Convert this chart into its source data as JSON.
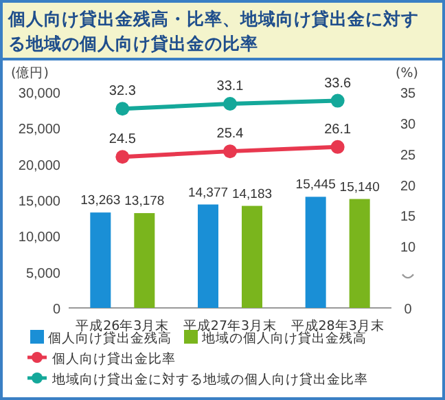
{
  "chart_data": {
    "type": "bar",
    "title": "個人向け貸出金残高・比率、地域向け貸出金に対する地域の個人向け貸出金の比率",
    "ylabel": "(億円)",
    "y2label": "(%)",
    "categories": [
      "平成26年3月末",
      "平成27年3月末",
      "平成28年3月末"
    ],
    "series": [
      {
        "name": "個人向け貸出金残高",
        "color": "#1a8fd6",
        "values": [
          13263,
          14377,
          15445
        ],
        "value_labels": [
          "13,263",
          "14,377",
          "15,445"
        ]
      },
      {
        "name": "地域の個人向け貸出金残高",
        "color": "#7ab51d",
        "values": [
          13178,
          14183,
          15140
        ],
        "value_labels": [
          "13,178",
          "14,183",
          "15,140"
        ]
      },
      {
        "name": "個人向け貸出金比率",
        "type": "line",
        "axis": "y2",
        "color": "#e8384f",
        "values": [
          24.5,
          25.4,
          26.1
        ],
        "value_labels": [
          "24.5",
          "25.4",
          "26.1"
        ]
      },
      {
        "name": "地域向け貸出金に対する地域の個人向け貸出金比率",
        "type": "line",
        "axis": "y2",
        "color": "#14a89a",
        "values": [
          32.3,
          33.1,
          33.6
        ],
        "value_labels": [
          "32.3",
          "33.1",
          "33.6"
        ]
      }
    ],
    "ylim": [
      0,
      30000
    ],
    "yticks": [
      {
        "value": 0,
        "label": "0"
      },
      {
        "value": 5000,
        "label": "5,000"
      },
      {
        "value": 10000,
        "label": "10,000"
      },
      {
        "value": 15000,
        "label": "15,000"
      },
      {
        "value": 20000,
        "label": "20,000"
      },
      {
        "value": 25000,
        "label": "25,000"
      },
      {
        "value": 30000,
        "label": "30,000"
      }
    ],
    "y2lim": [
      0,
      35
    ],
    "y2ticks": [
      0,
      10,
      15,
      20,
      25,
      30,
      35
    ],
    "marker": "circle",
    "grid": false,
    "legend": "bottom"
  }
}
